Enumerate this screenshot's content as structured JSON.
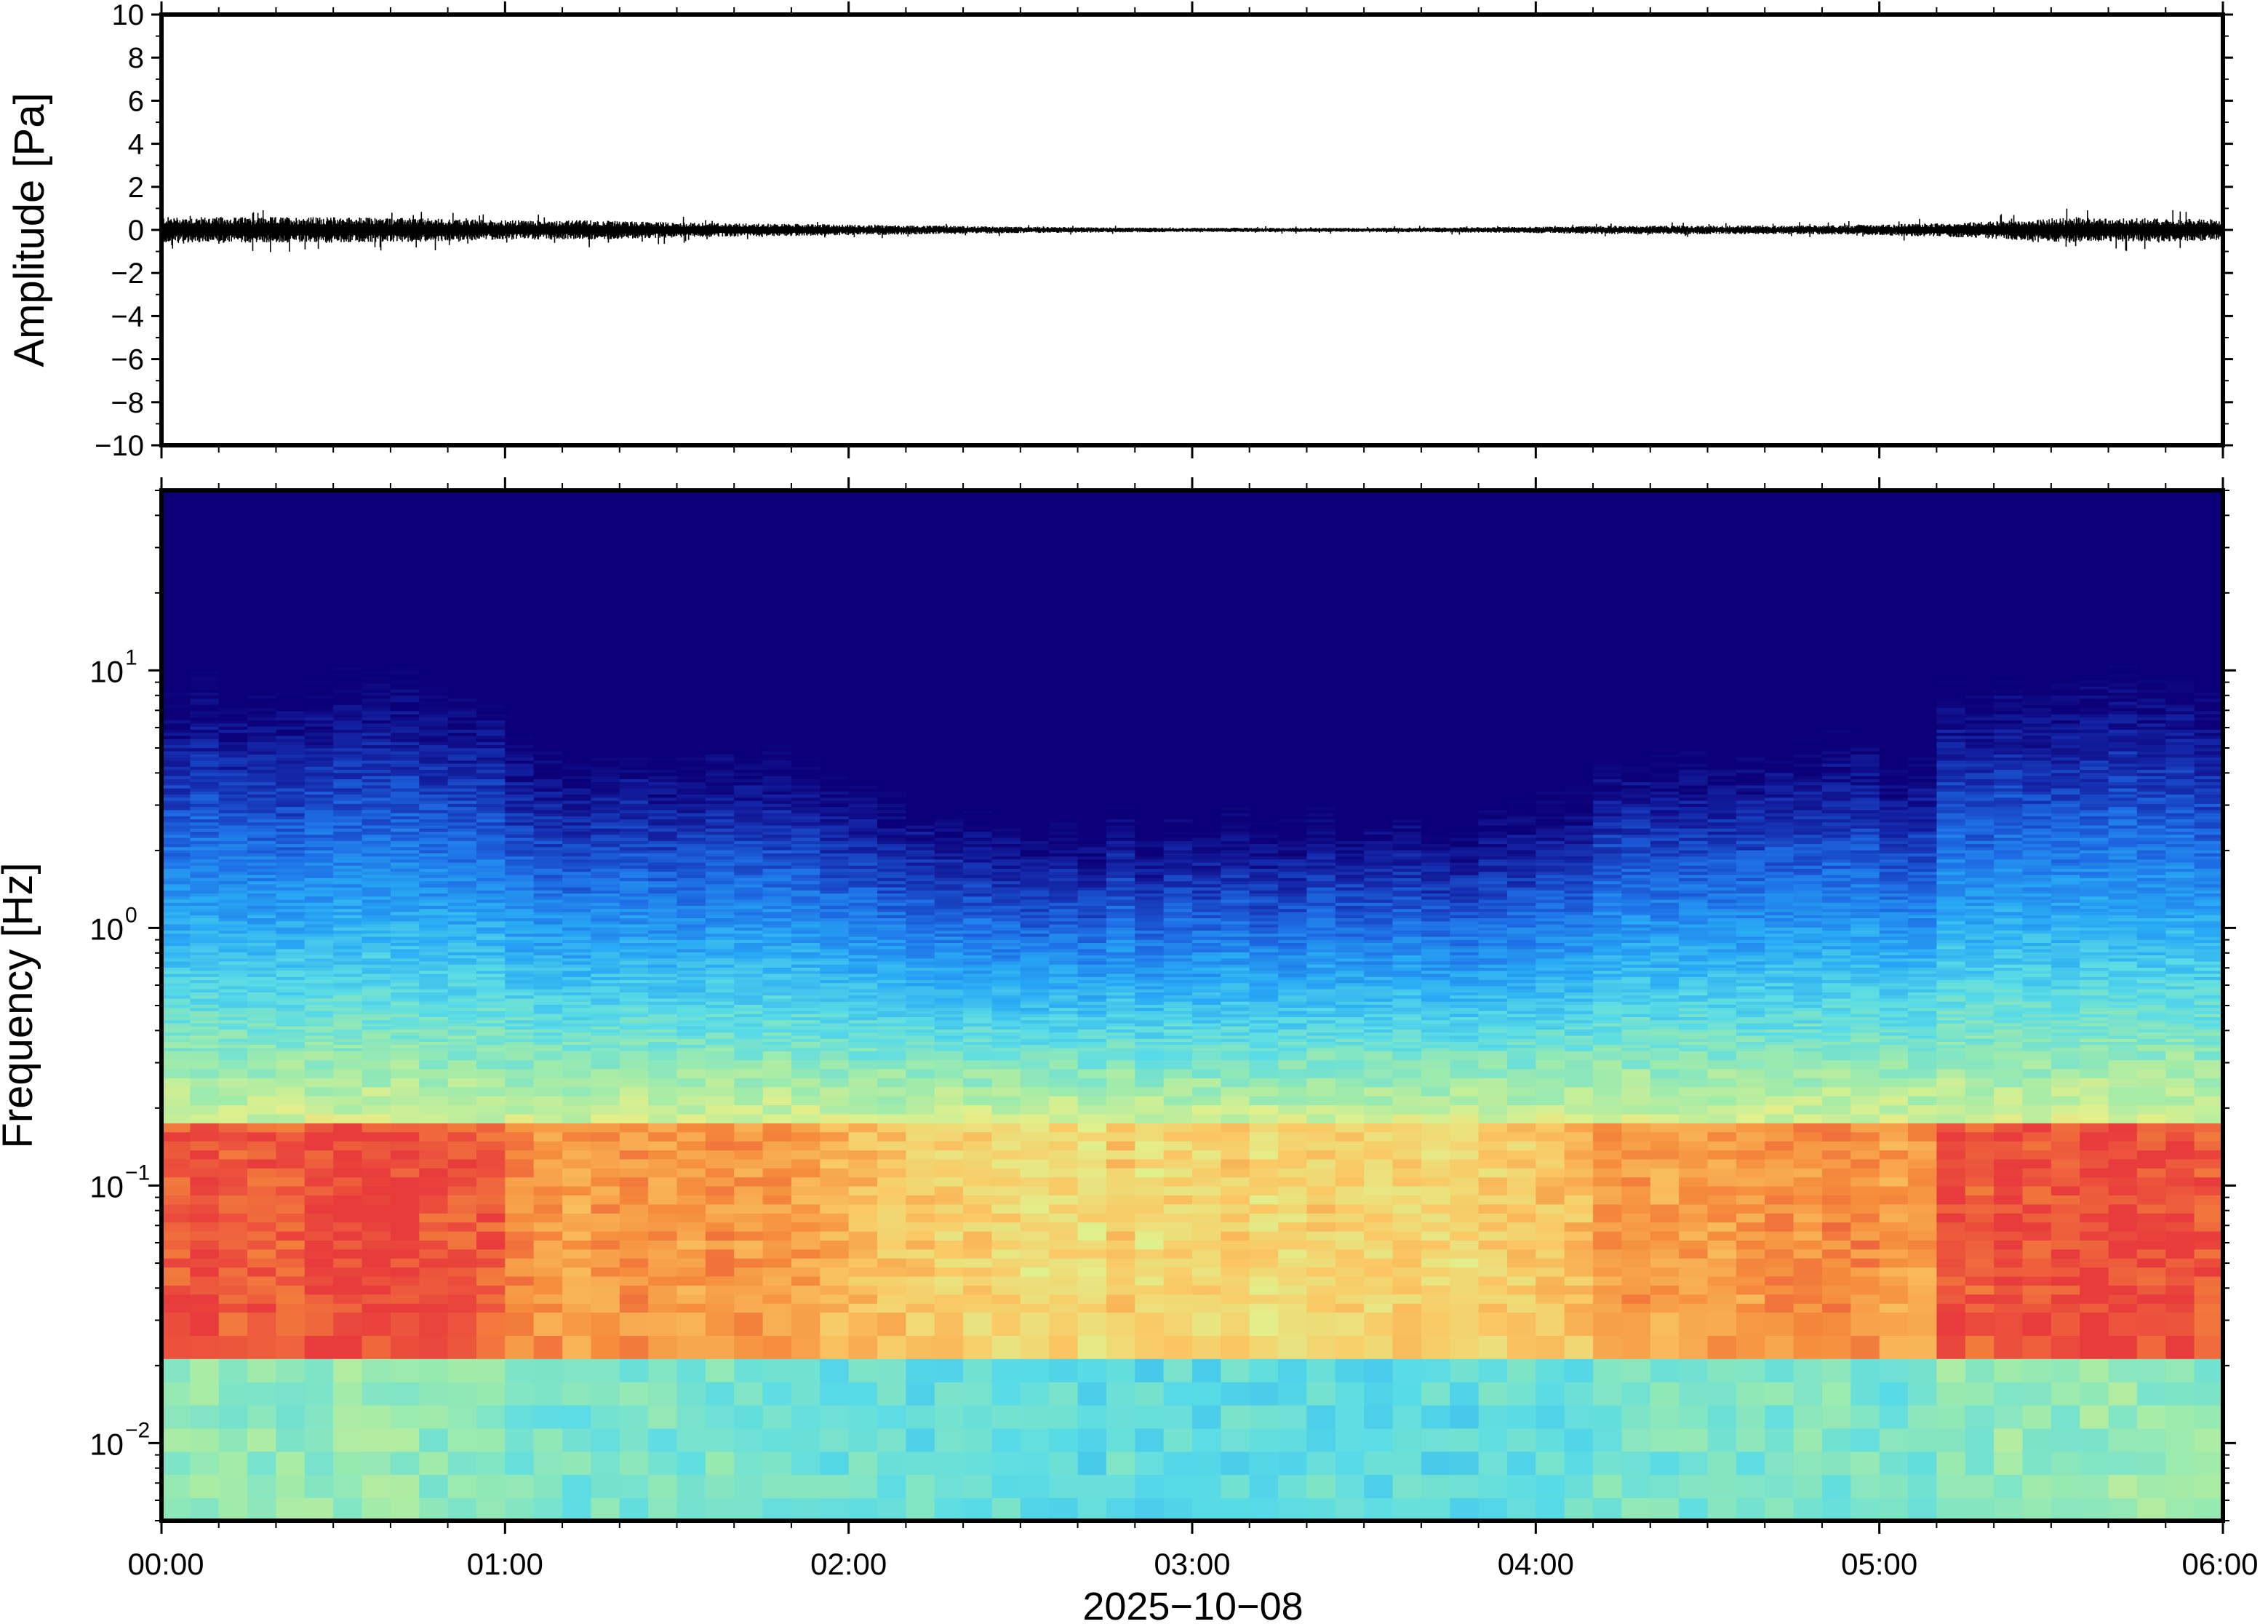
{
  "chart_data": [
    {
      "type": "line",
      "panel": "waveform",
      "ylabel": "Amplitude [Pa]",
      "ylim": [
        -10,
        10
      ],
      "yticks": [
        "10",
        "8",
        "6",
        "4",
        "2",
        "0",
        "−2",
        "−4",
        "−6",
        "−8",
        "−10"
      ],
      "ytick_values": [
        10,
        8,
        6,
        4,
        2,
        0,
        -2,
        -4,
        -6,
        -8,
        -10
      ],
      "xlim": [
        "00:00",
        "06:00"
      ],
      "series": [
        {
          "x_hours": [
            0.0,
            0.25,
            0.5,
            0.75,
            1.0,
            1.25,
            1.5,
            1.75,
            2.0,
            2.25,
            2.5,
            2.75,
            3.0,
            3.25,
            3.5,
            3.75,
            4.0,
            4.25,
            4.5,
            4.75,
            5.0,
            5.25,
            5.5,
            5.75,
            6.0
          ],
          "amplitude_envelope": [
            0.6,
            0.6,
            0.6,
            0.55,
            0.45,
            0.45,
            0.35,
            0.3,
            0.25,
            0.2,
            0.15,
            0.12,
            0.1,
            0.1,
            0.1,
            0.12,
            0.15,
            0.2,
            0.2,
            0.2,
            0.25,
            0.35,
            0.55,
            0.55,
            0.5
          ]
        }
      ],
      "grid": false
    },
    {
      "type": "heatmap",
      "panel": "spectrogram",
      "ylabel": "Frequency [Hz]",
      "yscale": "log",
      "ylim": [
        0.005,
        50
      ],
      "yticks": [
        {
          "base": "10",
          "exp": "1",
          "value": 10
        },
        {
          "base": "10",
          "exp": "0",
          "value": 1
        },
        {
          "base": "10",
          "exp": "−1",
          "value": 0.1
        },
        {
          "base": "10",
          "exp": "−2",
          "value": 0.01
        }
      ],
      "xlabel": "2025−10−08",
      "xticks": [
        "00:00",
        "01:00",
        "02:00",
        "03:00",
        "04:00",
        "05:00",
        "06:00"
      ],
      "colormap": "rainbow",
      "description_profile": {
        "energetic_band_hz": [
          0.03,
          0.15
        ],
        "quiet_period_hours": [
          2.4,
          3.8
        ],
        "strong_periods_hours": [
          [
            0.0,
            1.0
          ],
          [
            5.2,
            6.0
          ]
        ]
      },
      "grid": false
    }
  ]
}
